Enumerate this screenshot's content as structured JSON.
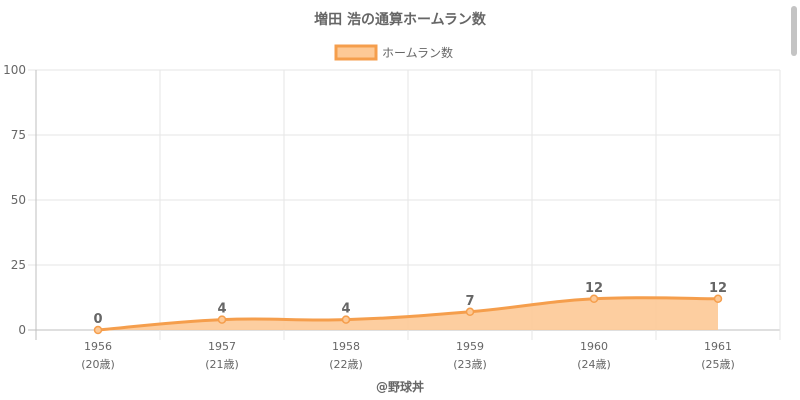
{
  "title": "増田 浩の通算ホームラン数",
  "credit": "@野球丼",
  "colors": {
    "line": "#f59e4c",
    "fill": "#fdc996",
    "grid": "#e6e6e6",
    "axis": "#bfbfbf",
    "text": "#666666"
  },
  "chart_data": {
    "type": "area",
    "title": "増田 浩の通算ホームラン数",
    "x": [
      "1956",
      "1957",
      "1958",
      "1959",
      "1960",
      "1961"
    ],
    "x_sublabels": [
      "(20歳)",
      "(21歳)",
      "(22歳)",
      "(23歳)",
      "(24歳)",
      "(25歳)"
    ],
    "series": [
      {
        "name": "ホームラン数",
        "values": [
          0,
          4,
          4,
          7,
          12,
          12
        ]
      }
    ],
    "data_labels": [
      "0",
      "4",
      "4",
      "7",
      "12",
      "12"
    ],
    "ylim": [
      0,
      100
    ],
    "yticks": [
      0,
      25,
      50,
      75,
      100
    ],
    "grid": true,
    "legend": "top-center"
  }
}
